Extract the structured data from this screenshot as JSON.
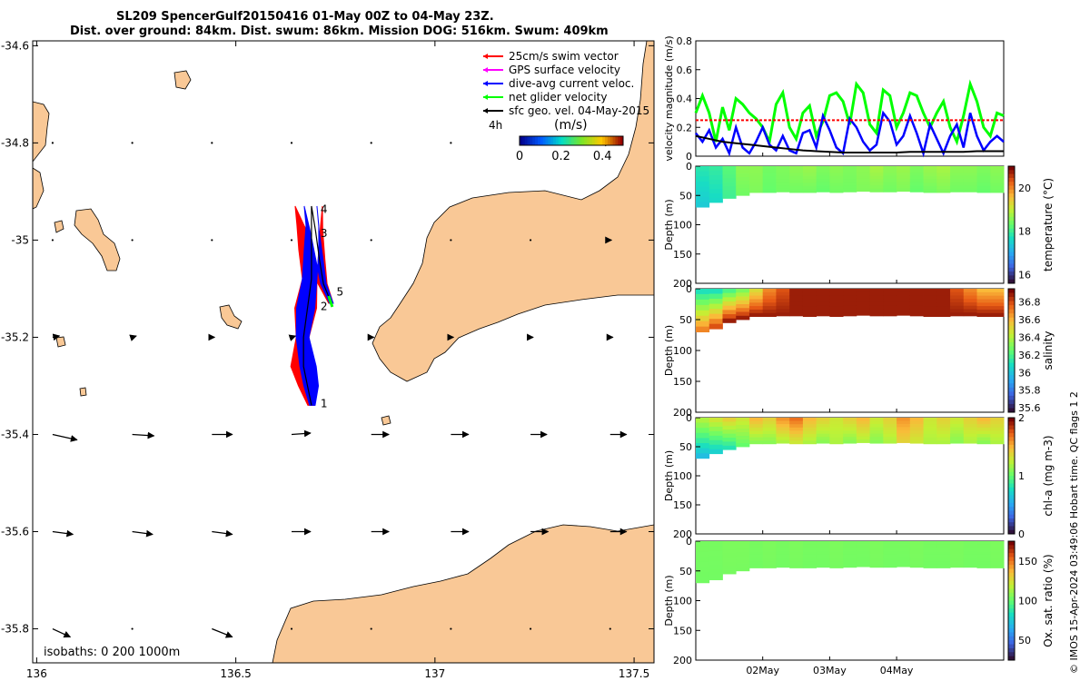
{
  "title": {
    "line1": "SL209 SpencerGulf20150416 01-May 00Z to 04-May 23Z.",
    "line2": "Dist. over ground: 84km. Dist. swum: 86km. Mission DOG: 516km. Swum: 409km"
  },
  "credit": "© IMOS 15-Apr-2024 03:49:06 Hobart time. QC flags 1  2",
  "colors": {
    "land": "#f9c896",
    "swim": "#ff0000",
    "gps": "#ff00ff",
    "dive_avg": "#0000ff",
    "net": "#00ff00",
    "geo": "#000000"
  },
  "chart_data": [
    {
      "id": "map",
      "type": "scatter",
      "title": "",
      "xlabel": "",
      "ylabel": "",
      "xlim": [
        135.99,
        137.55
      ],
      "ylim": [
        -35.87,
        -34.59
      ],
      "xticks": [
        136,
        136.5,
        137,
        137.5
      ],
      "xtick_labels": [
        "136",
        "136.5",
        "137",
        "137.5"
      ],
      "yticks": [
        -34.6,
        -34.8,
        -35,
        -35.2,
        -35.4,
        -35.6,
        -35.8
      ],
      "ytick_labels": [
        "-34.6",
        "-34.8",
        "-35",
        "-35.2",
        "-35.4",
        "-35.6",
        "-35.8"
      ],
      "legend": {
        "entries": [
          {
            "label": "25cm/s swim vector",
            "color_key": "swim"
          },
          {
            "label": "GPS surface velocity",
            "color_key": "gps"
          },
          {
            "label": "dive-avg current veloc.",
            "color_key": "dive_avg"
          },
          {
            "label": "net glider velocity",
            "color_key": "net"
          },
          {
            "label": "sfc geo. vel. 04-May-2015",
            "color_key": "geo"
          }
        ],
        "interval_label": "4h",
        "colorbar_title": "(m/s)",
        "colorbar_ticks": [
          "0",
          "0.2",
          "0.4"
        ],
        "colorbar_range": [
          0,
          0.5
        ]
      },
      "isobath_label": "isobaths: 0   200  1000m",
      "waypoints": [
        {
          "label": "1",
          "lon": 136.69,
          "lat": -35.34
        },
        {
          "label": "2",
          "lon": 136.69,
          "lat": -35.14
        },
        {
          "label": "3",
          "lon": 136.69,
          "lat": -34.99
        },
        {
          "label": "4",
          "lon": 136.69,
          "lat": -34.94
        },
        {
          "label": "5",
          "lon": 136.73,
          "lat": -35.11
        }
      ],
      "glider_track": [
        {
          "lon": 136.69,
          "lat": -35.34
        },
        {
          "lon": 136.68,
          "lat": -35.3
        },
        {
          "lon": 136.67,
          "lat": -35.26
        },
        {
          "lon": 136.67,
          "lat": -35.2
        },
        {
          "lon": 136.68,
          "lat": -35.14
        },
        {
          "lon": 136.69,
          "lat": -35.08
        },
        {
          "lon": 136.69,
          "lat": -35.02
        },
        {
          "lon": 136.69,
          "lat": -34.97
        },
        {
          "lon": 136.69,
          "lat": -34.93
        },
        {
          "lon": 136.7,
          "lat": -34.98
        },
        {
          "lon": 136.71,
          "lat": -35.04
        },
        {
          "lon": 136.72,
          "lat": -35.09
        },
        {
          "lon": 136.74,
          "lat": -35.13
        }
      ],
      "geo_vectors": {
        "lats": [
          -34.8,
          -35,
          -35.2,
          -35.4,
          -35.6,
          -35.8
        ],
        "lons": [
          136.04,
          136.24,
          136.44,
          136.64,
          136.84,
          137.04,
          137.24,
          137.44
        ],
        "u": [
          [
            0.0,
            0.0,
            0.0,
            0.0,
            0.0,
            0.0,
            0.0,
            0.01
          ],
          [
            0.0,
            0.0,
            0.0,
            0.0,
            0.0,
            0.0,
            0.0,
            0.01
          ],
          [
            0.05,
            0.03,
            0.02,
            0.03,
            0.02,
            0.02,
            0.02,
            0.02
          ],
          [
            0.18,
            0.16,
            0.15,
            0.14,
            0.13,
            0.13,
            0.12,
            0.12
          ],
          [
            0.15,
            0.15,
            0.15,
            0.14,
            0.13,
            0.13,
            0.13,
            0.12
          ],
          [
            0.13,
            0.0,
            0.15,
            0.0,
            0.0,
            0.0,
            0.0,
            0.0
          ]
        ],
        "v": [
          [
            0.0,
            0.0,
            0.0,
            0.0,
            0.0,
            0.0,
            0.0,
            0.0
          ],
          [
            0.0,
            0.0,
            0.0,
            0.0,
            0.0,
            0.0,
            0.0,
            0.0
          ],
          [
            0.01,
            0.01,
            0.0,
            0.01,
            0.0,
            0.0,
            0.0,
            0.0
          ],
          [
            -0.04,
            -0.01,
            0.0,
            0.01,
            0.0,
            0.0,
            0.0,
            0.0
          ],
          [
            -0.02,
            -0.02,
            -0.02,
            0.0,
            0.0,
            0.0,
            0.0,
            0.0
          ],
          [
            -0.06,
            0.0,
            -0.06,
            0.0,
            0.0,
            0.0,
            0.0,
            0.0
          ]
        ]
      }
    },
    {
      "id": "velocity",
      "type": "line",
      "title": "",
      "xlabel": "",
      "ylabel": "velocity magnitude (m/s)",
      "xlim": [
        0,
        4.6
      ],
      "ylim": [
        0,
        0.8
      ],
      "yticks": [
        0,
        0.2,
        0.4,
        0.6,
        0.8
      ],
      "ytick_labels": [
        "0",
        "0.2",
        "0.4",
        "0.6",
        "0.8"
      ],
      "series": [
        {
          "name": "net glider velocity",
          "color_key": "net",
          "x": [
            0,
            0.1,
            0.2,
            0.3,
            0.4,
            0.5,
            0.6,
            0.7,
            0.8,
            0.9,
            1,
            1.1,
            1.2,
            1.3,
            1.4,
            1.5,
            1.6,
            1.7,
            1.8,
            1.9,
            2,
            2.1,
            2.2,
            2.3,
            2.4,
            2.5,
            2.6,
            2.7,
            2.8,
            2.9,
            3,
            3.1,
            3.2,
            3.3,
            3.4,
            3.5,
            3.6,
            3.7,
            3.8,
            3.9,
            4,
            4.1,
            4.2,
            4.3,
            4.4,
            4.5,
            4.6
          ],
          "y": [
            0.3,
            0.42,
            0.3,
            0.1,
            0.34,
            0.18,
            0.4,
            0.36,
            0.3,
            0.26,
            0.2,
            0.1,
            0.36,
            0.44,
            0.2,
            0.12,
            0.3,
            0.35,
            0.14,
            0.24,
            0.42,
            0.44,
            0.38,
            0.22,
            0.5,
            0.44,
            0.22,
            0.16,
            0.46,
            0.42,
            0.2,
            0.3,
            0.44,
            0.42,
            0.3,
            0.2,
            0.3,
            0.38,
            0.2,
            0.1,
            0.28,
            0.5,
            0.38,
            0.2,
            0.14,
            0.3,
            0.28
          ]
        },
        {
          "name": "dive-avg current veloc.",
          "color_key": "dive_avg",
          "x": [
            0,
            0.1,
            0.2,
            0.3,
            0.4,
            0.5,
            0.6,
            0.7,
            0.8,
            0.9,
            1,
            1.1,
            1.2,
            1.3,
            1.4,
            1.5,
            1.6,
            1.7,
            1.8,
            1.9,
            2,
            2.1,
            2.2,
            2.3,
            2.4,
            2.5,
            2.6,
            2.7,
            2.8,
            2.9,
            3,
            3.1,
            3.2,
            3.3,
            3.4,
            3.5,
            3.6,
            3.7,
            3.8,
            3.9,
            4,
            4.1,
            4.2,
            4.3,
            4.4,
            4.5,
            4.6
          ],
          "y": [
            0.16,
            0.1,
            0.18,
            0.06,
            0.12,
            0.02,
            0.2,
            0.06,
            0.02,
            0.1,
            0.2,
            0.08,
            0.04,
            0.14,
            0.04,
            0.02,
            0.16,
            0.18,
            0.06,
            0.28,
            0.18,
            0.06,
            0.02,
            0.26,
            0.2,
            0.1,
            0.04,
            0.08,
            0.3,
            0.24,
            0.08,
            0.14,
            0.28,
            0.16,
            0.02,
            0.22,
            0.12,
            0.02,
            0.14,
            0.22,
            0.06,
            0.3,
            0.14,
            0.04,
            0.1,
            0.14,
            0.1
          ]
        },
        {
          "name": "sfc geo. vel.",
          "color_key": "geo",
          "x": [
            0,
            0.2,
            0.4,
            0.6,
            0.8,
            1,
            1.2,
            1.4,
            1.6,
            1.8,
            2,
            2.2,
            2.4,
            2.6,
            2.8,
            3,
            3.2,
            3.4,
            3.6,
            3.8,
            4,
            4.2,
            4.4,
            4.6
          ],
          "y": [
            0.14,
            0.12,
            0.1,
            0.09,
            0.08,
            0.07,
            0.06,
            0.05,
            0.04,
            0.035,
            0.03,
            0.025,
            0.025,
            0.025,
            0.025,
            0.025,
            0.03,
            0.03,
            0.03,
            0.03,
            0.03,
            0.035,
            0.035,
            0.035
          ]
        },
        {
          "name": "25cm/s swim vector",
          "color_key": "swim",
          "x": [
            0,
            4.6
          ],
          "y": [
            0.25,
            0.25
          ]
        }
      ]
    },
    {
      "id": "temperature",
      "type": "heatmap",
      "title": "",
      "ylabel": "Depth (m)",
      "colorbar_label": "temperature (°C)",
      "ylim": [
        200,
        0
      ],
      "yticks": [
        0,
        50,
        100,
        150,
        200
      ],
      "ytick_labels": [
        "0",
        "50",
        "100",
        "150",
        "200"
      ],
      "clim": [
        15.6,
        21
      ],
      "cticks": [
        16,
        18,
        20
      ],
      "ctick_labels": [
        "16",
        "18",
        "20"
      ],
      "colormap": "turbo",
      "x": [
        0,
        0.2,
        0.4,
        0.6,
        0.8,
        1,
        1.2,
        1.4,
        1.6,
        1.8,
        2,
        2.2,
        2.4,
        2.6,
        2.8,
        3,
        3.2,
        3.4,
        3.6,
        3.8,
        4,
        4.2,
        4.4,
        4.6
      ],
      "bottom_depth": [
        70,
        62,
        55,
        50,
        45,
        45,
        44,
        45,
        45,
        44,
        45,
        44,
        43,
        44,
        44,
        43,
        44,
        45,
        45,
        44,
        44,
        45,
        45,
        45
      ],
      "surface": [
        17.8,
        17.9,
        18.2,
        18.6,
        18.6,
        18.4,
        18.5,
        18.6,
        18.7,
        18.5,
        18.6,
        18.5,
        18.6,
        18.8,
        18.6,
        18.7,
        18.5,
        18.7,
        18.8,
        18.6,
        18.6,
        18.5,
        18.6,
        18.6
      ],
      "deep": [
        17.4,
        17.6,
        18.0,
        18.4,
        18.5,
        18.3,
        18.4,
        18.4,
        18.4,
        18.3,
        18.4,
        18.4,
        18.5,
        18.5,
        18.4,
        18.5,
        18.3,
        18.4,
        18.5,
        18.4,
        18.4,
        18.3,
        18.4,
        18.4
      ]
    },
    {
      "id": "salinity",
      "type": "heatmap",
      "title": "",
      "ylabel": "Depth (m)",
      "colorbar_label": "salinity",
      "ylim": [
        200,
        0
      ],
      "yticks": [
        0,
        50,
        100,
        150,
        200
      ],
      "ytick_labels": [
        "0",
        "50",
        "100",
        "150",
        "200"
      ],
      "clim": [
        35.55,
        36.95
      ],
      "cticks": [
        35.6,
        35.8,
        36,
        36.2,
        36.4,
        36.6,
        36.8
      ],
      "ctick_labels": [
        "35.6",
        "35.8",
        "36",
        "36.2",
        "36.4",
        "36.6",
        "36.8"
      ],
      "colormap": "turbo",
      "x": [
        0,
        0.2,
        0.4,
        0.6,
        0.8,
        1,
        1.2,
        1.4,
        1.6,
        1.8,
        2,
        2.2,
        2.4,
        2.6,
        2.8,
        3,
        3.2,
        3.4,
        3.6,
        3.8,
        4,
        4.2,
        4.4,
        4.6
      ],
      "bottom_depth": [
        70,
        65,
        55,
        50,
        45,
        45,
        44,
        44,
        45,
        44,
        45,
        44,
        43,
        44,
        44,
        43,
        44,
        45,
        45,
        44,
        44,
        45,
        45,
        45
      ],
      "surface": [
        36.1,
        36.1,
        36.2,
        36.3,
        36.5,
        36.7,
        36.8,
        36.9,
        36.9,
        36.9,
        36.9,
        36.9,
        36.9,
        36.9,
        36.9,
        36.9,
        36.9,
        36.9,
        36.9,
        36.8,
        36.7,
        36.6,
        36.6,
        36.5
      ],
      "deep": [
        36.7,
        36.8,
        36.9,
        36.9,
        36.9,
        36.9,
        36.9,
        36.9,
        36.9,
        36.9,
        36.9,
        36.9,
        36.9,
        36.9,
        36.9,
        36.9,
        36.9,
        36.9,
        36.9,
        36.9,
        36.9,
        36.9,
        36.9,
        36.9
      ]
    },
    {
      "id": "chla",
      "type": "heatmap",
      "title": "",
      "ylabel": "Depth (m)",
      "colorbar_label": "chl-a (mg m-3)",
      "ylim": [
        200,
        0
      ],
      "yticks": [
        0,
        50,
        100,
        150,
        200
      ],
      "ytick_labels": [
        "0",
        "50",
        "100",
        "150",
        "200"
      ],
      "clim": [
        0,
        2
      ],
      "cticks": [
        0,
        1,
        2
      ],
      "ctick_labels": [
        "0",
        "1",
        "2"
      ],
      "colormap": "turbo",
      "x": [
        0,
        0.2,
        0.4,
        0.6,
        0.8,
        1,
        1.2,
        1.4,
        1.6,
        1.8,
        2,
        2.2,
        2.4,
        2.6,
        2.8,
        3,
        3.2,
        3.4,
        3.6,
        3.8,
        4,
        4.2,
        4.4,
        4.6
      ],
      "bottom_depth": [
        70,
        62,
        55,
        50,
        45,
        45,
        44,
        45,
        45,
        44,
        45,
        44,
        43,
        44,
        44,
        43,
        44,
        45,
        45,
        44,
        44,
        45,
        45,
        45
      ],
      "surface": [
        1.2,
        1.3,
        1.4,
        1.3,
        1.5,
        1.4,
        1.6,
        1.7,
        1.5,
        1.4,
        1.3,
        1.4,
        1.5,
        1.3,
        1.4,
        1.6,
        1.5,
        1.3,
        1.4,
        1.3,
        1.4,
        1.5,
        1.4,
        1.3
      ],
      "deep": [
        0.6,
        0.7,
        0.8,
        1.0,
        1.1,
        1.1,
        1.2,
        1.3,
        1.2,
        1.1,
        1.2,
        1.1,
        1.2,
        1.1,
        1.2,
        1.4,
        1.3,
        1.2,
        1.2,
        1.1,
        1.2,
        1.1,
        1.2,
        1.1
      ]
    },
    {
      "id": "oxygen",
      "type": "heatmap",
      "title": "",
      "ylabel": "Depth (m)",
      "colorbar_label": "Ox. sat. ratio (%)",
      "ylim": [
        200,
        0
      ],
      "yticks": [
        0,
        50,
        100,
        150,
        200
      ],
      "ytick_labels": [
        "0",
        "50",
        "100",
        "150",
        "200"
      ],
      "clim": [
        25,
        175
      ],
      "cticks": [
        50,
        100,
        150
      ],
      "ctick_labels": [
        "50",
        "100",
        "150"
      ],
      "colormap": "turbo",
      "xticks": [
        1,
        2,
        3
      ],
      "xtick_labels": [
        "02May",
        "03May",
        "04May"
      ],
      "x": [
        0,
        0.2,
        0.4,
        0.6,
        0.8,
        1,
        1.2,
        1.4,
        1.6,
        1.8,
        2,
        2.2,
        2.4,
        2.6,
        2.8,
        3,
        3.2,
        3.4,
        3.6,
        3.8,
        4,
        4.2,
        4.4,
        4.6
      ],
      "bottom_depth": [
        70,
        65,
        55,
        50,
        45,
        45,
        44,
        45,
        45,
        44,
        45,
        44,
        43,
        44,
        44,
        43,
        44,
        45,
        45,
        44,
        44,
        45,
        45,
        45
      ],
      "surface": [
        104,
        104,
        105,
        105,
        104,
        105,
        104,
        105,
        104,
        104,
        105,
        104,
        104,
        105,
        104,
        104,
        105,
        104,
        104,
        105,
        104,
        104,
        105,
        104
      ],
      "deep": [
        103,
        103,
        104,
        104,
        103,
        104,
        103,
        104,
        103,
        103,
        104,
        103,
        103,
        104,
        103,
        103,
        104,
        103,
        103,
        104,
        103,
        103,
        104,
        103
      ]
    }
  ]
}
